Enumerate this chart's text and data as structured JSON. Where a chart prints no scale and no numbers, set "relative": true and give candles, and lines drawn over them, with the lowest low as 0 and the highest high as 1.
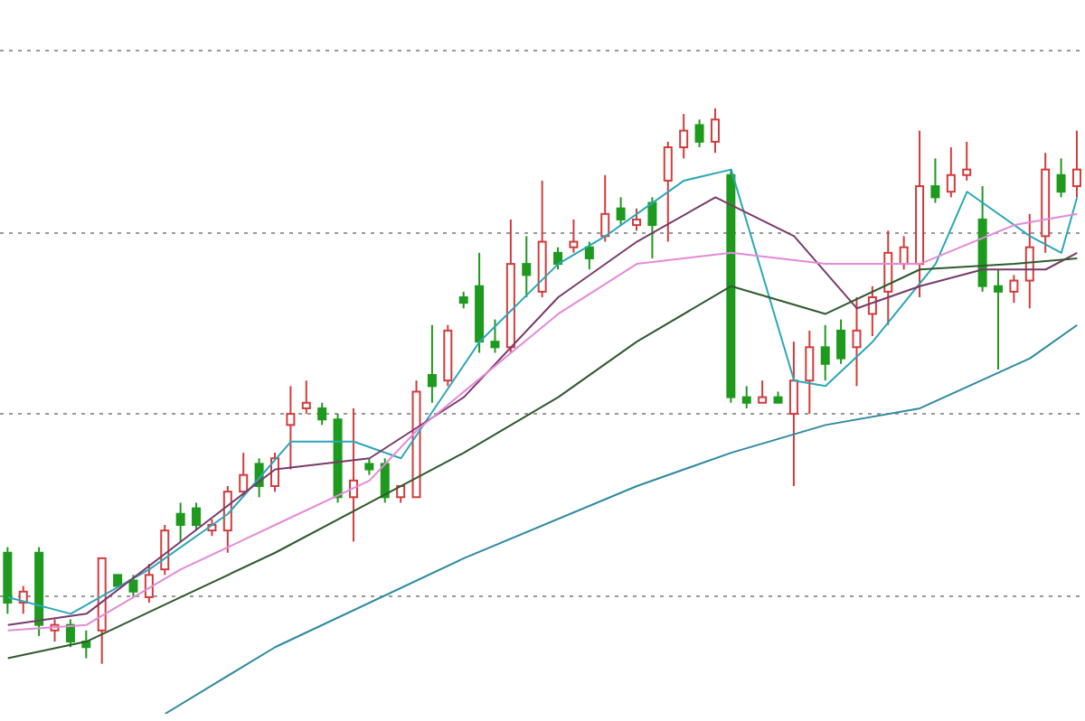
{
  "chart_data": {
    "type": "candlestick",
    "relative": true,
    "tick_labels": false,
    "grid": "y",
    "marker": "none",
    "categories": [
      null,
      null,
      null,
      null,
      null,
      null,
      null,
      null,
      null,
      null,
      null,
      null,
      null,
      null,
      null,
      null,
      null,
      null,
      null,
      null,
      null,
      null,
      null,
      null,
      null,
      null,
      null,
      null,
      null,
      null,
      null,
      null,
      null,
      null,
      null,
      null,
      null,
      null,
      null,
      null,
      null,
      null,
      null,
      null,
      null,
      null,
      null,
      null,
      null,
      null,
      null,
      null,
      null,
      null,
      null,
      null,
      null,
      null,
      null,
      null,
      null,
      null,
      null,
      null,
      null,
      null,
      null,
      null,
      null
    ],
    "ohlc": [
      [
        0.2,
        0.21,
        0.09,
        0.11
      ],
      [
        0.11,
        0.14,
        0.09,
        0.13
      ],
      [
        0.2,
        0.21,
        0.05,
        0.07
      ],
      [
        0.06,
        0.08,
        0.04,
        0.07
      ],
      [
        0.07,
        0.08,
        0.03,
        0.04
      ],
      [
        0.04,
        0.06,
        0.01,
        0.03
      ],
      [
        0.06,
        0.19,
        0,
        0.19
      ],
      [
        0.16,
        0.16,
        0.14,
        0.14
      ],
      [
        0.15,
        0.16,
        0.12,
        0.13
      ],
      [
        0.12,
        0.18,
        0.11,
        0.16
      ],
      [
        0.17,
        0.25,
        0.16,
        0.24
      ],
      [
        0.27,
        0.29,
        0.22,
        0.25
      ],
      [
        0.28,
        0.29,
        0.24,
        0.25
      ],
      [
        0.24,
        0.26,
        0.23,
        0.25
      ],
      [
        0.24,
        0.32,
        0.2,
        0.31
      ],
      [
        0.31,
        0.38,
        0.3,
        0.34
      ],
      [
        0.36,
        0.37,
        0.3,
        0.32
      ],
      [
        0.32,
        0.38,
        0.31,
        0.37
      ],
      [
        0.43,
        0.5,
        0.35,
        0.45
      ],
      [
        0.46,
        0.51,
        0.45,
        0.47
      ],
      [
        0.46,
        0.47,
        0.43,
        0.44
      ],
      [
        0.44,
        0.45,
        0.29,
        0.3
      ],
      [
        0.3,
        0.46,
        0.22,
        0.33
      ],
      [
        0.36,
        0.37,
        0.34,
        0.35
      ],
      [
        0.36,
        0.37,
        0.29,
        0.3
      ],
      [
        0.3,
        0.32,
        0.29,
        0.32
      ],
      [
        0.3,
        0.51,
        0.3,
        0.49
      ],
      [
        0.52,
        0.61,
        0.47,
        0.5
      ],
      [
        0.51,
        0.61,
        0.5,
        0.6
      ],
      [
        0.66,
        0.67,
        0.64,
        0.65
      ],
      [
        0.68,
        0.74,
        0.56,
        0.58
      ],
      [
        0.58,
        0.62,
        0.56,
        0.57
      ],
      [
        0.57,
        0.8,
        0.56,
        0.72
      ],
      [
        0.72,
        0.77,
        0.66,
        0.7
      ],
      [
        0.67,
        0.87,
        0.66,
        0.76
      ],
      [
        0.74,
        0.75,
        0.71,
        0.72
      ],
      [
        0.75,
        0.8,
        0.74,
        0.76
      ],
      [
        0.75,
        0.76,
        0.71,
        0.73
      ],
      [
        0.77,
        0.88,
        0.76,
        0.81
      ],
      [
        0.82,
        0.84,
        0.79,
        0.8
      ],
      [
        0.79,
        0.82,
        0.78,
        0.8
      ],
      [
        0.83,
        0.84,
        0.73,
        0.79
      ],
      [
        0.87,
        0.94,
        0.76,
        0.93
      ],
      [
        0.93,
        0.99,
        0.91,
        0.96
      ],
      [
        0.97,
        0.98,
        0.93,
        0.94
      ],
      [
        0.94,
        1,
        0.92,
        0.98
      ],
      [
        0.88,
        0.89,
        0.47,
        0.48
      ],
      [
        0.48,
        0.5,
        0.46,
        0.47
      ],
      [
        0.47,
        0.51,
        0.47,
        0.48
      ],
      [
        0.48,
        0.49,
        0.47,
        0.47
      ],
      [
        0.45,
        0.58,
        0.32,
        0.51
      ],
      [
        0.51,
        0.6,
        0.45,
        0.57
      ],
      [
        0.57,
        0.61,
        0.51,
        0.54
      ],
      [
        0.6,
        0.62,
        0.54,
        0.55
      ],
      [
        0.57,
        0.66,
        0.5,
        0.6
      ],
      [
        0.63,
        0.68,
        0.59,
        0.66
      ],
      [
        0.67,
        0.78,
        0.61,
        0.74
      ],
      [
        0.72,
        0.77,
        0.71,
        0.75
      ],
      [
        0.72,
        0.96,
        0.66,
        0.86
      ],
      [
        0.86,
        0.91,
        0.83,
        0.84
      ],
      [
        0.85,
        0.93,
        0.84,
        0.88
      ],
      [
        0.88,
        0.94,
        0.87,
        0.89
      ],
      [
        0.8,
        0.86,
        0.67,
        0.68
      ],
      [
        0.68,
        0.71,
        0.53,
        0.67
      ],
      [
        0.67,
        0.7,
        0.65,
        0.69
      ],
      [
        0.69,
        0.81,
        0.64,
        0.75
      ],
      [
        0.77,
        0.92,
        0.74,
        0.89
      ],
      [
        0.88,
        0.91,
        0.84,
        0.85
      ],
      [
        0.86,
        0.96,
        0.84,
        0.89
      ]
    ],
    "colors": [
      "#1e9a1e",
      "#d23c3c",
      "#1e9a1e",
      "#d23c3c",
      "#1e9a1e",
      "#1e9a1e",
      "#d23c3c",
      "#1e9a1e",
      "#1e9a1e",
      "#d23c3c",
      "#d23c3c",
      "#1e9a1e",
      "#1e9a1e",
      "#d23c3c",
      "#d23c3c",
      "#d23c3c",
      "#1e9a1e",
      "#d23c3c",
      "#d23c3c",
      "#d23c3c",
      "#1e9a1e",
      "#1e9a1e",
      "#d23c3c",
      "#1e9a1e",
      "#1e9a1e",
      "#d23c3c",
      "#d23c3c",
      "#1e9a1e",
      "#d23c3c",
      "#1e9a1e",
      "#1e9a1e",
      "#1e9a1e",
      "#d23c3c",
      "#1e9a1e",
      "#d23c3c",
      "#1e9a1e",
      "#d23c3c",
      "#1e9a1e",
      "#d23c3c",
      "#1e9a1e",
      "#d23c3c",
      "#1e9a1e",
      "#d23c3c",
      "#d23c3c",
      "#1e9a1e",
      "#d23c3c",
      "#1e9a1e",
      "#1e9a1e",
      "#d23c3c",
      "#1e9a1e",
      "#d23c3c",
      "#d23c3c",
      "#1e9a1e",
      "#1e9a1e",
      "#d23c3c",
      "#d23c3c",
      "#d23c3c",
      "#d23c3c",
      "#d23c3c",
      "#1e9a1e",
      "#d23c3c",
      "#d23c3c",
      "#1e9a1e",
      "#1e9a1e",
      "#d23c3c",
      "#d23c3c",
      "#d23c3c",
      "#1e9a1e",
      "#d23c3c"
    ],
    "series": [
      {
        "type": "line",
        "color": "#2aa7b8",
        "values": [
          0.12,
          null,
          null,
          null,
          0.09,
          null,
          null,
          null,
          null,
          0.17,
          null,
          null,
          null,
          null,
          0.27,
          null,
          null,
          null,
          0.4,
          null,
          null,
          null,
          0.4,
          null,
          null,
          0.37,
          null,
          null,
          null,
          null,
          0.58,
          null,
          null,
          null,
          null,
          0.72,
          null,
          null,
          0.77,
          null,
          null,
          null,
          null,
          0.87,
          null,
          null,
          0.89,
          null,
          null,
          null,
          0.51,
          null,
          0.5,
          null,
          null,
          0.58,
          null,
          null,
          null,
          0.72,
          null,
          0.85,
          null,
          null,
          null,
          0.77,
          null,
          0.74,
          0.84
        ]
      },
      {
        "type": "line",
        "color": "#7a3a6a",
        "values": [
          0.07,
          null,
          null,
          null,
          null,
          0.09,
          null,
          null,
          null,
          null,
          null,
          0.22,
          null,
          null,
          null,
          null,
          null,
          0.35,
          null,
          null,
          null,
          null,
          null,
          0.37,
          null,
          null,
          null,
          null,
          null,
          0.48,
          null,
          null,
          null,
          null,
          null,
          0.66,
          null,
          null,
          null,
          null,
          0.76,
          null,
          null,
          null,
          null,
          0.84,
          null,
          null,
          null,
          null,
          0.77,
          null,
          null,
          null,
          0.64,
          null,
          null,
          null,
          0.68,
          null,
          null,
          null,
          0.71,
          null,
          null,
          null,
          0.71,
          null,
          0.74
        ]
      },
      {
        "type": "line",
        "color": "#e48ad8",
        "values": [
          0.06,
          null,
          null,
          null,
          null,
          0.07,
          null,
          null,
          null,
          null,
          null,
          0.17,
          null,
          null,
          null,
          null,
          null,
          0.25,
          null,
          null,
          null,
          null,
          null,
          0.33,
          null,
          null,
          0.42,
          null,
          null,
          null,
          null,
          null,
          null,
          null,
          null,
          0.63,
          null,
          null,
          null,
          null,
          0.72,
          null,
          null,
          null,
          null,
          null,
          0.74,
          null,
          null,
          null,
          null,
          null,
          0.72,
          null,
          null,
          null,
          null,
          null,
          0.72,
          null,
          null,
          null,
          null,
          null,
          0.79,
          null,
          null,
          null,
          0.81
        ]
      },
      {
        "type": "line",
        "color": "#2f5a2f",
        "values": [
          0.01,
          null,
          null,
          null,
          null,
          0.04,
          null,
          null,
          null,
          null,
          null,
          0.12,
          null,
          null,
          null,
          null,
          null,
          0.2,
          null,
          null,
          null,
          null,
          null,
          0.29,
          null,
          null,
          null,
          null,
          null,
          0.38,
          null,
          null,
          null,
          null,
          null,
          0.48,
          null,
          null,
          null,
          null,
          0.58,
          null,
          null,
          null,
          null,
          null,
          0.68,
          null,
          null,
          null,
          null,
          null,
          0.63,
          null,
          null,
          null,
          null,
          null,
          0.71,
          null,
          null,
          null,
          null,
          null,
          0.72,
          null,
          null,
          null,
          0.73
        ]
      },
      {
        "type": "line",
        "color": "#2e8aa0",
        "values": [
          null,
          null,
          null,
          null,
          null,
          null,
          null,
          null,
          null,
          null,
          -0.09,
          null,
          null,
          null,
          null,
          null,
          null,
          0.03,
          null,
          null,
          null,
          null,
          null,
          null,
          null,
          null,
          null,
          null,
          null,
          0.19,
          null,
          null,
          null,
          null,
          null,
          null,
          null,
          null,
          null,
          null,
          0.32,
          null,
          null,
          null,
          null,
          null,
          0.38,
          null,
          null,
          null,
          null,
          null,
          0.43,
          null,
          null,
          null,
          null,
          null,
          0.46,
          null,
          null,
          null,
          null,
          null,
          null,
          0.55,
          null,
          null,
          0.61
        ]
      }
    ]
  }
}
